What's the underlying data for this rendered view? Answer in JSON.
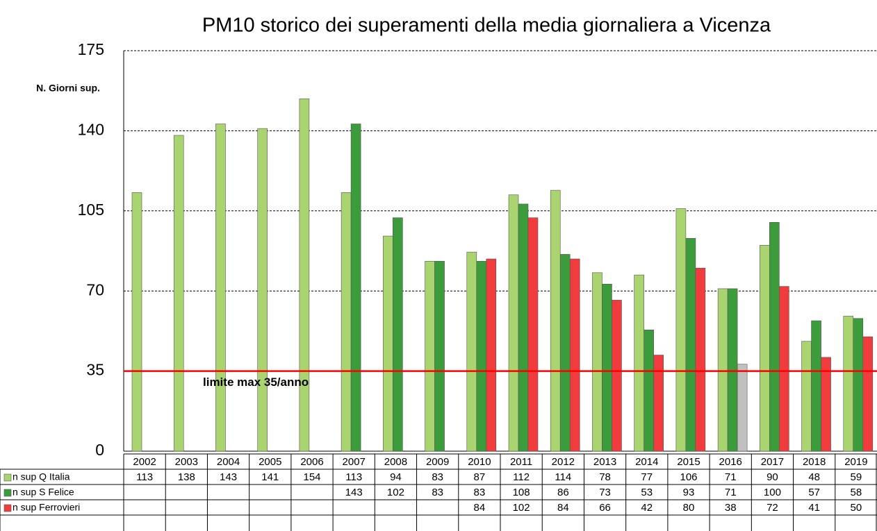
{
  "chart_data": {
    "type": "bar",
    "title": "PM10 storico dei superamenti della media giornaliera a Vicenza",
    "y_label": "N. Giorni sup.",
    "categories": [
      "2002",
      "2003",
      "2004",
      "2005",
      "2006",
      "2007",
      "2008",
      "2009",
      "2010",
      "2011",
      "2012",
      "2013",
      "2014",
      "2015",
      "2016",
      "2017",
      "2018",
      "2019"
    ],
    "series": [
      {
        "name": "n sup Q Italia",
        "color": "#a9d470",
        "values": [
          113,
          138,
          143,
          141,
          154,
          113,
          94,
          83,
          87,
          112,
          114,
          78,
          77,
          106,
          71,
          90,
          48,
          59
        ]
      },
      {
        "name": "n sup S Felice",
        "color": "#3c9c3c",
        "values": [
          null,
          null,
          null,
          null,
          null,
          143,
          102,
          83,
          83,
          108,
          86,
          73,
          53,
          93,
          71,
          100,
          57,
          58
        ]
      },
      {
        "name": "n sup Ferrovieri",
        "color": "#f03c3c",
        "values": [
          null,
          null,
          null,
          null,
          null,
          null,
          null,
          null,
          84,
          102,
          84,
          66,
          42,
          80,
          38,
          72,
          41,
          50
        ],
        "colors": [
          null,
          null,
          null,
          null,
          null,
          null,
          null,
          null,
          "#f03c3c",
          "#f03c3c",
          "#f03c3c",
          "#f03c3c",
          "#f03c3c",
          "#f03c3c",
          "#c0c0c0",
          "#f03c3c",
          "#f03c3c",
          "#f03c3c"
        ]
      }
    ],
    "ylim": [
      0,
      175
    ],
    "yticks": [
      0,
      35,
      70,
      105,
      140,
      175
    ],
    "grid": true,
    "annotations": [
      {
        "text": "limite max 35/anno",
        "y": 35,
        "color": "#ff0000"
      }
    ]
  }
}
